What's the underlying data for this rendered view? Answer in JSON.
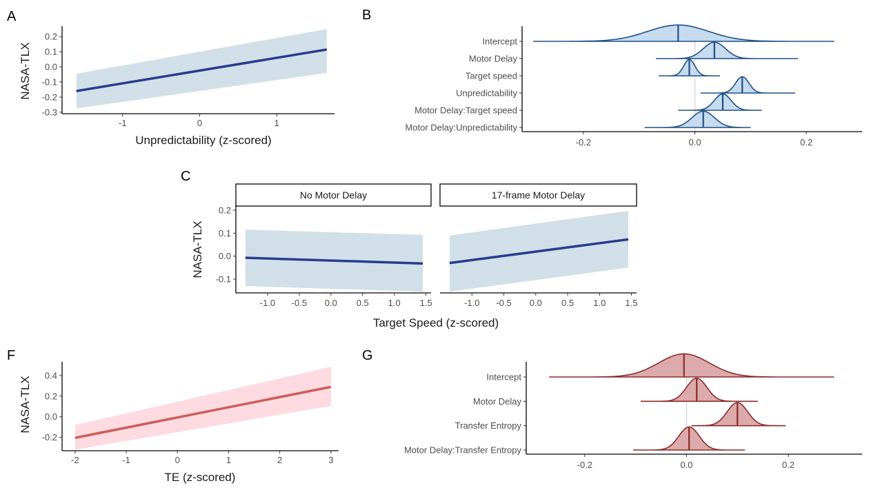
{
  "chart_data": [
    {
      "id": "A",
      "type": "line",
      "panel_label": "A",
      "xlabel": "Unpredictability (z-scored)",
      "ylabel": "NASA-TLX",
      "x_ticks": [
        -1,
        0,
        1
      ],
      "y_ticks": [
        -0.3,
        -0.2,
        -0.1,
        0.0,
        0.1,
        0.2
      ],
      "x_tick_labels": [
        "-1",
        "0",
        "1"
      ],
      "y_tick_labels": [
        "-0.3",
        "-0.2",
        "-0.1",
        "0.0",
        "0.1",
        "0.2"
      ],
      "xlim": [
        -1.75,
        1.75
      ],
      "ylim": [
        -0.31,
        0.26
      ],
      "line": {
        "x": [
          -1.6,
          1.65
        ],
        "y": [
          -0.16,
          0.115
        ]
      },
      "ribbon": {
        "x": [
          -1.6,
          1.65
        ],
        "lower": [
          -0.275,
          -0.04
        ],
        "upper": [
          -0.045,
          0.25
        ]
      },
      "line_color": "#2b3a8c",
      "ribbon_color": "#d1e0e8"
    },
    {
      "id": "B",
      "type": "ridge",
      "panel_label": "B",
      "categories": [
        "Intercept",
        "Motor Delay",
        "Target speed",
        "Unpredictability",
        "Motor Delay:Target speed",
        "Motor Delay:Unpredictability"
      ],
      "estimates": [
        -0.03,
        0.035,
        -0.01,
        0.085,
        0.05,
        0.015
      ],
      "ranges": [
        [
          -0.29,
          0.25
        ],
        [
          -0.07,
          0.185
        ],
        [
          -0.065,
          0.045
        ],
        [
          0.01,
          0.18
        ],
        [
          -0.03,
          0.12
        ],
        [
          -0.09,
          0.1
        ]
      ],
      "sds": [
        0.055,
        0.02,
        0.01,
        0.012,
        0.015,
        0.02
      ],
      "x_ticks": [
        -0.2,
        0.0,
        0.2
      ],
      "x_tick_labels": [
        "-0.2",
        "0.0",
        "0.2"
      ],
      "xlim": [
        -0.31,
        0.3
      ],
      "line_color": "#1f4e85",
      "fill_color": "#c6dbef"
    },
    {
      "id": "C",
      "type": "line",
      "panel_label": "C",
      "xlabel": "Target Speed (z-scored)",
      "ylabel": "NASA-TLX",
      "x_ticks": [
        -1.0,
        -0.5,
        0.0,
        0.5,
        1.0,
        1.5
      ],
      "x_tick_labels": [
        "-1.0",
        "-0.5",
        "0.0",
        "0.5",
        "1.0",
        "1.5"
      ],
      "y_ticks": [
        -0.1,
        0.0,
        0.1,
        0.2
      ],
      "y_tick_labels": [
        "-0.1",
        "0.0",
        "0.1",
        "0.2"
      ],
      "xlim": [
        -1.5,
        1.58
      ],
      "ylim": [
        -0.16,
        0.215
      ],
      "facets": [
        {
          "title": "No Motor Delay",
          "line": {
            "x": [
              -1.35,
              1.45
            ],
            "y": [
              -0.007,
              -0.032
            ]
          },
          "ribbon": {
            "x": [
              -1.35,
              1.45
            ],
            "lower": [
              -0.13,
              -0.155
            ],
            "upper": [
              0.115,
              0.093
            ]
          }
        },
        {
          "title": "17-frame Motor Delay",
          "line": {
            "x": [
              -1.35,
              1.45
            ],
            "y": [
              -0.03,
              0.073
            ]
          },
          "ribbon": {
            "x": [
              -1.35,
              1.45
            ],
            "lower": [
              -0.155,
              -0.05
            ],
            "upper": [
              0.09,
              0.197
            ]
          }
        }
      ],
      "line_color": "#2b3a8c",
      "ribbon_color": "#d1e0e8"
    },
    {
      "id": "F",
      "type": "line",
      "panel_label": "F",
      "xlabel": "TE (z-scored)",
      "ylabel": "NASA-TLX",
      "x_ticks": [
        -2,
        -1,
        0,
        1,
        2,
        3
      ],
      "x_tick_labels": [
        "-2",
        "-1",
        "0",
        "1",
        "2",
        "3"
      ],
      "y_ticks": [
        -0.2,
        0.0,
        0.2,
        0.4
      ],
      "y_tick_labels": [
        "-0.2",
        "0.0",
        "0.2",
        "0.4"
      ],
      "xlim": [
        -2.2,
        3.15
      ],
      "ylim": [
        -0.33,
        0.52
      ],
      "line": {
        "x": [
          -2,
          3
        ],
        "y": [
          -0.205,
          0.29
        ]
      },
      "ribbon": {
        "x": [
          -2,
          3
        ],
        "lower": [
          -0.32,
          0.105
        ],
        "upper": [
          -0.08,
          0.485
        ]
      },
      "line_color": "#cd5c5c",
      "ribbon_color": "#fddbe0"
    },
    {
      "id": "G",
      "type": "ridge",
      "panel_label": "G",
      "categories": [
        "Intercept",
        "Motor Delay",
        "Transfer Entropy",
        "Motor Delay:Transfer Entropy"
      ],
      "estimates": [
        -0.005,
        0.02,
        0.1,
        0.005
      ],
      "ranges": [
        [
          -0.27,
          0.29
        ],
        [
          -0.09,
          0.14
        ],
        [
          0.01,
          0.195
        ],
        [
          -0.105,
          0.115
        ]
      ],
      "sds": [
        0.05,
        0.02,
        0.02,
        0.02
      ],
      "x_ticks": [
        -0.2,
        0.0,
        0.2
      ],
      "x_tick_labels": [
        "-0.2",
        "0.0",
        "0.2"
      ],
      "xlim": [
        -0.315,
        0.345
      ],
      "line_color": "#8b2a2a",
      "fill_color": "#dcaaaa"
    }
  ]
}
